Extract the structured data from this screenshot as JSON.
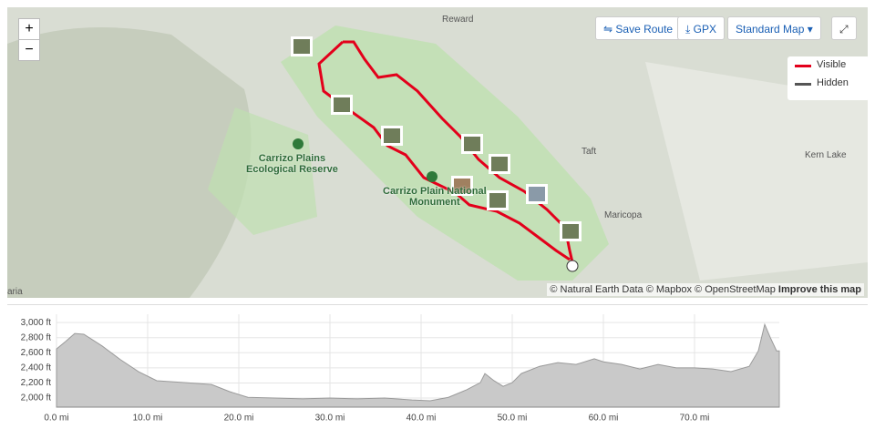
{
  "map": {
    "places": [
      "Reward",
      "Taft",
      "Kern Lake",
      "Maricopa",
      "aria"
    ],
    "reserve": [
      "Carrizo Plains",
      "Ecological Reserve"
    ],
    "monument": [
      "Carrizo Plain National",
      "Monument"
    ],
    "zoom_in": "+",
    "zoom_out": "−",
    "buttons": {
      "save": "Save Route",
      "gpx": "GPX",
      "style": "Standard Map"
    },
    "legend": [
      "Visible",
      "Hidden"
    ],
    "attribution": "© Natural Earth Data © Mapbox © OpenStreetMap",
    "improve": "Improve this map"
  },
  "elevation": {
    "type": "area",
    "color": "#c9c9c9",
    "line": "#9a9a9a",
    "x": [
      0,
      1,
      2,
      3,
      5,
      7,
      9,
      11,
      14,
      17,
      19,
      21,
      24,
      27,
      30,
      33,
      36,
      39,
      41,
      43,
      45,
      46.5,
      47,
      48,
      49,
      50,
      51,
      53,
      55,
      57,
      59,
      60,
      62,
      64,
      66,
      68,
      70,
      72,
      74,
      76,
      77,
      77.7,
      78.3,
      79,
      79.3
    ],
    "values": [
      2650,
      2750,
      2855,
      2845,
      2690,
      2510,
      2350,
      2230,
      2205,
      2180,
      2085,
      2010,
      2000,
      1990,
      2000,
      1990,
      2000,
      1975,
      1965,
      2010,
      2110,
      2205,
      2325,
      2230,
      2155,
      2205,
      2325,
      2420,
      2470,
      2445,
      2520,
      2480,
      2445,
      2385,
      2445,
      2400,
      2400,
      2385,
      2350,
      2420,
      2625,
      2975,
      2805,
      2625,
      2625
    ],
    "xlim": [
      0,
      79.3
    ],
    "ylim": [
      1880,
      3110
    ],
    "xticks": [
      {
        "value": 0,
        "label": "0.0 mi"
      },
      {
        "value": 10,
        "label": "10.0 mi"
      },
      {
        "value": 20,
        "label": "20.0 mi"
      },
      {
        "value": 30,
        "label": "30.0 mi"
      },
      {
        "value": 40,
        "label": "40.0 mi"
      },
      {
        "value": 50,
        "label": "50.0 mi"
      },
      {
        "value": 60,
        "label": "60.0 mi"
      },
      {
        "value": 70,
        "label": "70.0 mi"
      }
    ],
    "yticks": [
      {
        "value": 2000,
        "label": "2,000 ft"
      },
      {
        "value": 2200,
        "label": "2,200 ft"
      },
      {
        "value": 2400,
        "label": "2,400 ft"
      },
      {
        "value": 2600,
        "label": "2,600 ft"
      },
      {
        "value": 2800,
        "label": "2,800 ft"
      },
      {
        "value": 3000,
        "label": "3,000 ft"
      }
    ],
    "grid": true
  }
}
